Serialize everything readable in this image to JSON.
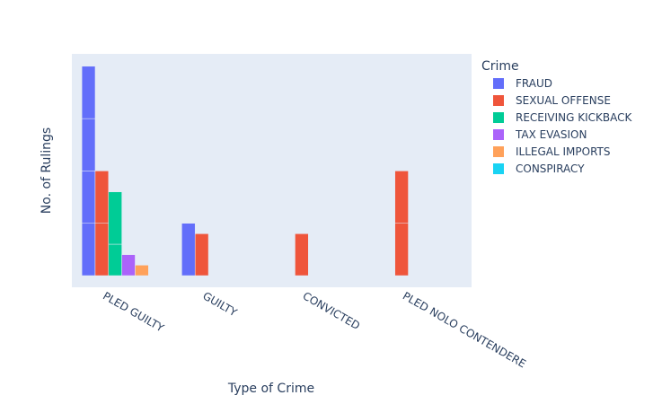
{
  "chart_data": {
    "type": "bar",
    "barmode": "group",
    "xlabel": "Type of Crime",
    "ylabel": "No. of Rulings",
    "categories": [
      "PLED GUILTY",
      "GUILTY",
      "CONVICTED",
      "PLED NOLO CONTENDERE"
    ],
    "legend_title": "Crime",
    "legend_position": "right",
    "plot_background": "#e5ecf6",
    "y_tick_labels_shown": false,
    "ylim": [
      0,
      4.2
    ],
    "series": [
      {
        "name": "FRAUD",
        "color": "#636efa",
        "segments": [
          [
            1,
            1,
            1,
            1
          ],
          [
            1
          ],
          [],
          []
        ]
      },
      {
        "name": "SEXUAL OFFENSE",
        "color": "#EF553B",
        "segments": [
          [
            1,
            1
          ],
          [
            0.8
          ],
          [
            0.8
          ],
          [
            1,
            1
          ]
        ]
      },
      {
        "name": "RECEIVING KICKBACK",
        "color": "#00cc96",
        "segments": [
          [
            0.6,
            1
          ],
          [],
          [],
          []
        ]
      },
      {
        "name": "TAX EVASION",
        "color": "#ab63fa",
        "segments": [
          [
            0.4
          ],
          [],
          [],
          []
        ]
      },
      {
        "name": "ILLEGAL IMPORTS",
        "color": "#FFA15A",
        "segments": [
          [
            0.2
          ],
          [],
          [],
          []
        ]
      },
      {
        "name": "CONSPIRACY",
        "color": "#19d3f3",
        "segments": [
          [],
          [],
          [],
          []
        ]
      }
    ]
  }
}
